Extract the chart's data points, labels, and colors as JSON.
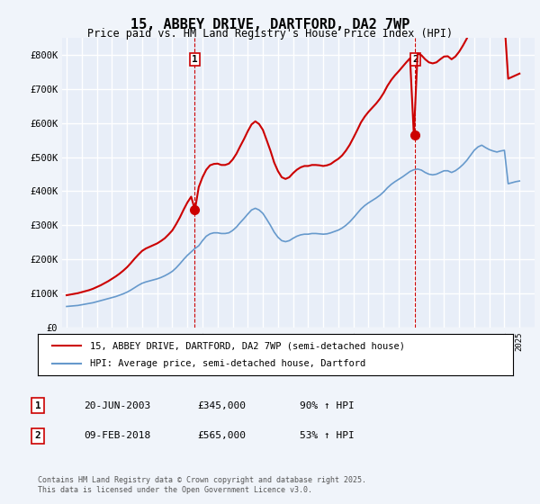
{
  "title": "15, ABBEY DRIVE, DARTFORD, DA2 7WP",
  "subtitle": "Price paid vs. HM Land Registry's House Price Index (HPI)",
  "background_color": "#f0f4fa",
  "plot_background": "#e8eef8",
  "grid_color": "#ffffff",
  "ylim": [
    0,
    850000
  ],
  "yticks": [
    0,
    100000,
    200000,
    300000,
    400000,
    500000,
    600000,
    700000,
    800000
  ],
  "ytick_labels": [
    "£0",
    "£100K",
    "£200K",
    "£300K",
    "£400K",
    "£500K",
    "£600K",
    "£700K",
    "£800K"
  ],
  "xlim_start": 1995,
  "xlim_end": 2026,
  "red_color": "#cc0000",
  "blue_color": "#6699cc",
  "marker1_date": 2003.47,
  "marker1_value": 345000,
  "marker1_label": "1",
  "marker2_date": 2018.1,
  "marker2_value": 565000,
  "marker2_label": "2",
  "vline1_x": 2003.47,
  "vline2_x": 2018.1,
  "legend_line1": "15, ABBEY DRIVE, DARTFORD, DA2 7WP (semi-detached house)",
  "legend_line2": "HPI: Average price, semi-detached house, Dartford",
  "table_row1": [
    "1",
    "20-JUN-2003",
    "£345,000",
    "90% ↑ HPI"
  ],
  "table_row2": [
    "2",
    "09-FEB-2018",
    "£565,000",
    "53% ↑ HPI"
  ],
  "footer": "Contains HM Land Registry data © Crown copyright and database right 2025.\nThis data is licensed under the Open Government Licence v3.0.",
  "hpi_data": {
    "years": [
      1995.0,
      1995.25,
      1995.5,
      1995.75,
      1996.0,
      1996.25,
      1996.5,
      1996.75,
      1997.0,
      1997.25,
      1997.5,
      1997.75,
      1998.0,
      1998.25,
      1998.5,
      1998.75,
      1999.0,
      1999.25,
      1999.5,
      1999.75,
      2000.0,
      2000.25,
      2000.5,
      2000.75,
      2001.0,
      2001.25,
      2001.5,
      2001.75,
      2002.0,
      2002.25,
      2002.5,
      2002.75,
      2003.0,
      2003.25,
      2003.5,
      2003.75,
      2004.0,
      2004.25,
      2004.5,
      2004.75,
      2005.0,
      2005.25,
      2005.5,
      2005.75,
      2006.0,
      2006.25,
      2006.5,
      2006.75,
      2007.0,
      2007.25,
      2007.5,
      2007.75,
      2008.0,
      2008.25,
      2008.5,
      2008.75,
      2009.0,
      2009.25,
      2009.5,
      2009.75,
      2010.0,
      2010.25,
      2010.5,
      2010.75,
      2011.0,
      2011.25,
      2011.5,
      2011.75,
      2012.0,
      2012.25,
      2012.5,
      2012.75,
      2013.0,
      2013.25,
      2013.5,
      2013.75,
      2014.0,
      2014.25,
      2014.5,
      2014.75,
      2015.0,
      2015.25,
      2015.5,
      2015.75,
      2016.0,
      2016.25,
      2016.5,
      2016.75,
      2017.0,
      2017.25,
      2017.5,
      2017.75,
      2018.0,
      2018.25,
      2018.5,
      2018.75,
      2019.0,
      2019.25,
      2019.5,
      2019.75,
      2020.0,
      2020.25,
      2020.5,
      2020.75,
      2021.0,
      2021.25,
      2021.5,
      2021.75,
      2022.0,
      2022.25,
      2022.5,
      2022.75,
      2023.0,
      2023.25,
      2023.5,
      2023.75,
      2024.0,
      2024.25,
      2024.5,
      2024.75,
      2025.0
    ],
    "values": [
      62000,
      63000,
      64000,
      65000,
      67000,
      69000,
      71000,
      73000,
      76000,
      79000,
      82000,
      85000,
      88000,
      91000,
      95000,
      99000,
      104000,
      110000,
      117000,
      124000,
      130000,
      134000,
      137000,
      140000,
      143000,
      147000,
      152000,
      158000,
      165000,
      175000,
      187000,
      200000,
      212000,
      222000,
      232000,
      240000,
      255000,
      268000,
      275000,
      278000,
      278000,
      276000,
      276000,
      278000,
      285000,
      295000,
      308000,
      320000,
      333000,
      345000,
      350000,
      345000,
      335000,
      318000,
      300000,
      280000,
      265000,
      255000,
      252000,
      255000,
      262000,
      268000,
      272000,
      274000,
      274000,
      276000,
      276000,
      275000,
      274000,
      275000,
      278000,
      282000,
      286000,
      292000,
      300000,
      310000,
      322000,
      335000,
      348000,
      358000,
      366000,
      373000,
      380000,
      388000,
      398000,
      410000,
      420000,
      428000,
      435000,
      442000,
      450000,
      458000,
      463000,
      465000,
      462000,
      455000,
      450000,
      448000,
      450000,
      455000,
      460000,
      460000,
      455000,
      460000,
      468000,
      478000,
      490000,
      505000,
      520000,
      530000,
      535000,
      528000,
      522000,
      518000,
      515000,
      518000,
      520000,
      422000,
      425000,
      428000,
      430000
    ]
  },
  "price_data": {
    "years": [
      1995.0,
      1995.25,
      1995.5,
      1995.75,
      1996.0,
      1996.25,
      1996.5,
      1996.75,
      1997.0,
      1997.25,
      1997.5,
      1997.75,
      1998.0,
      1998.25,
      1998.5,
      1998.75,
      1999.0,
      1999.25,
      1999.5,
      1999.75,
      2000.0,
      2000.25,
      2000.5,
      2000.75,
      2001.0,
      2001.25,
      2001.5,
      2001.75,
      2002.0,
      2002.25,
      2002.5,
      2002.75,
      2003.0,
      2003.25,
      2003.5,
      2003.75,
      2004.0,
      2004.25,
      2004.5,
      2004.75,
      2005.0,
      2005.25,
      2005.5,
      2005.75,
      2006.0,
      2006.25,
      2006.5,
      2006.75,
      2007.0,
      2007.25,
      2007.5,
      2007.75,
      2008.0,
      2008.25,
      2008.5,
      2008.75,
      2009.0,
      2009.25,
      2009.5,
      2009.75,
      2010.0,
      2010.25,
      2010.5,
      2010.75,
      2011.0,
      2011.25,
      2011.5,
      2011.75,
      2012.0,
      2012.25,
      2012.5,
      2012.75,
      2013.0,
      2013.25,
      2013.5,
      2013.75,
      2014.0,
      2014.25,
      2014.5,
      2014.75,
      2015.0,
      2015.25,
      2015.5,
      2015.75,
      2016.0,
      2016.25,
      2016.5,
      2016.75,
      2017.0,
      2017.25,
      2017.5,
      2017.75,
      2018.0,
      2018.25,
      2018.5,
      2018.75,
      2019.0,
      2019.25,
      2019.5,
      2019.75,
      2020.0,
      2020.25,
      2020.5,
      2020.75,
      2021.0,
      2021.25,
      2021.5,
      2021.75,
      2022.0,
      2022.25,
      2022.5,
      2022.75,
      2023.0,
      2023.25,
      2023.5,
      2023.75,
      2024.0,
      2024.25,
      2024.5,
      2024.75,
      2025.0
    ],
    "values": [
      95000,
      97000,
      99000,
      101000,
      104000,
      107000,
      110000,
      114000,
      119000,
      124000,
      130000,
      136000,
      143000,
      150000,
      158000,
      167000,
      177000,
      189000,
      202000,
      214000,
      225000,
      232000,
      237000,
      242000,
      247000,
      254000,
      262000,
      273000,
      285000,
      303000,
      323000,
      346000,
      367000,
      384000,
      345000,
      412000,
      441000,
      463000,
      476000,
      480000,
      481000,
      477000,
      477000,
      481000,
      493000,
      510000,
      532000,
      553000,
      576000,
      596000,
      605000,
      597000,
      580000,
      550000,
      519000,
      484000,
      459000,
      441000,
      436000,
      441000,
      453000,
      463000,
      470000,
      474000,
      474000,
      477000,
      477000,
      476000,
      474000,
      476000,
      480000,
      488000,
      495000,
      505000,
      519000,
      536000,
      557000,
      579000,
      602000,
      619000,
      633000,
      645000,
      657000,
      671000,
      688000,
      709000,
      726000,
      740000,
      752000,
      765000,
      778000,
      790000,
      565000,
      804000,
      799000,
      787000,
      778000,
      775000,
      778000,
      787000,
      795000,
      796000,
      787000,
      795000,
      809000,
      827000,
      847000,
      873000,
      899000,
      916000,
      925000,
      912000,
      903000,
      895000,
      890000,
      895000,
      899000,
      730000,
      735000,
      740000,
      745000
    ]
  }
}
